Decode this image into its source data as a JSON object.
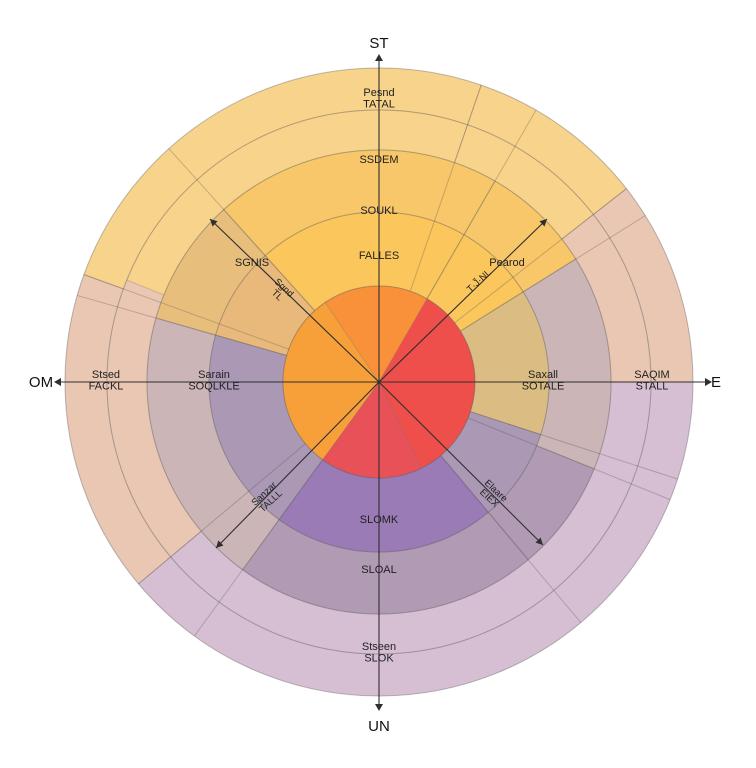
{
  "cardinal_labels": {
    "north": "ST",
    "east": "E",
    "south": "UN",
    "west": "OM"
  },
  "region_labels": [
    {
      "id": "outer-top",
      "lines": [
        "Pesnd",
        "TATAL"
      ]
    },
    {
      "id": "mid-top",
      "lines": [
        "SSDEM"
      ]
    },
    {
      "id": "inner-top-1",
      "lines": [
        "SOUKL"
      ]
    },
    {
      "id": "inner-top-2",
      "lines": [
        "FALLES"
      ]
    },
    {
      "id": "upper-left",
      "lines": [
        "SGNIS"
      ]
    },
    {
      "id": "upper-left-diagonal",
      "lines": [
        "Sgnd",
        "TL"
      ]
    },
    {
      "id": "upper-right",
      "lines": [
        "Pearod"
      ]
    },
    {
      "id": "upper-right-diagonal",
      "lines": [
        "T·J̃·NL"
      ]
    },
    {
      "id": "left-inner",
      "lines": [
        "Sarain",
        "SOQLKLE"
      ]
    },
    {
      "id": "left-outer",
      "lines": [
        "Stsed",
        "FACKL"
      ]
    },
    {
      "id": "right-inner",
      "lines": [
        "Saxall",
        "SOTALE"
      ]
    },
    {
      "id": "right-outer",
      "lines": [
        "SAQIM",
        "STALL"
      ]
    },
    {
      "id": "lower-left-diagonal",
      "lines": [
        "Sanzar",
        "TALLL"
      ]
    },
    {
      "id": "lower-right-diagonal",
      "lines": [
        "Elaare",
        "EIEX"
      ]
    },
    {
      "id": "lower-inner-1",
      "lines": [
        "SLOMK"
      ]
    },
    {
      "id": "lower-inner-2",
      "lines": [
        "SLOAL"
      ]
    },
    {
      "id": "outer-bottom",
      "lines": [
        "Stseen",
        "SLOK"
      ]
    }
  ],
  "colors": {
    "outer_yellow": "#f8d38b",
    "outer_peach": "#e9c7b3",
    "outer_mauve": "#d6bfd2",
    "mid_yellow": "#f7c76a",
    "mid_gold": "#e8be7d",
    "mid_taupe": "#cbb5b7",
    "mid_plum": "#b09ab4",
    "inner_yellow": "#fbc65c",
    "inner_gold": "#e8b97a",
    "inner_tan": "#dbbd84",
    "inner_lilac": "#aa98b5",
    "inner_purple": "#9a7bb6",
    "core_orange": "#f9913a",
    "core_amber": "#f7a03a",
    "core_red": "#ef4f4a",
    "core_rose": "#e95158",
    "axis": "#2f2f2f"
  }
}
